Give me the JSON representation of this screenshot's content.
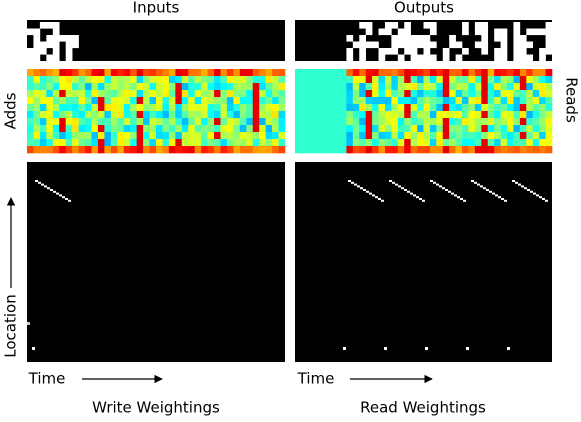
{
  "header": {
    "left_title": "Inputs",
    "right_title": "Outputs"
  },
  "side_labels": {
    "left": "Adds",
    "right": "Reads",
    "location": "Location"
  },
  "axes": {
    "left_time": "Time",
    "right_time": "Time"
  },
  "captions": {
    "left": "Write Weightings",
    "right": "Read Weightings"
  }
}
